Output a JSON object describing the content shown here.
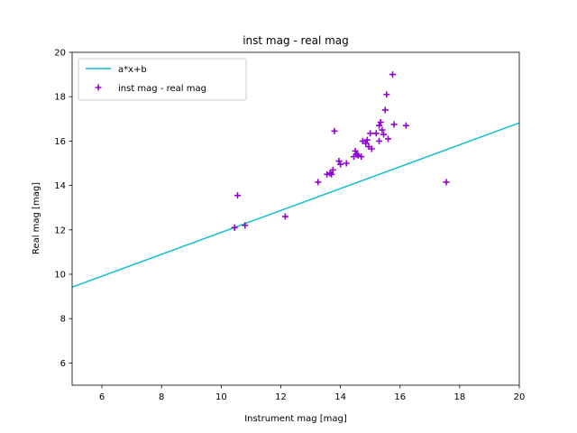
{
  "chart_data": {
    "type": "scatter",
    "title": "inst mag - real mag",
    "xlabel": "Instrument mag [mag]",
    "ylabel": "Real mag [mag]",
    "xlim": [
      5,
      20
    ],
    "ylim": [
      5,
      20
    ],
    "xticks": [
      6,
      8,
      10,
      12,
      14,
      16,
      18,
      20
    ],
    "yticks": [
      6,
      8,
      10,
      12,
      14,
      16,
      18,
      20
    ],
    "grid": false,
    "legend_position": "top-left",
    "series": [
      {
        "name": "a*x+b",
        "kind": "line",
        "color": "#17becf",
        "x": [
          5,
          20
        ],
        "y": [
          9.42,
          16.82
        ]
      },
      {
        "name": "inst mag - real mag",
        "kind": "scatter",
        "marker": "plus",
        "color": "#9400d3",
        "x": [
          10.45,
          10.55,
          10.8,
          12.15,
          13.25,
          13.55,
          13.65,
          13.7,
          13.75,
          13.8,
          13.95,
          14.0,
          14.2,
          14.45,
          14.5,
          14.55,
          14.6,
          14.7,
          14.75,
          14.85,
          14.9,
          14.95,
          15.0,
          15.05,
          15.2,
          15.3,
          15.3,
          15.35,
          15.4,
          15.45,
          15.5,
          15.55,
          15.6,
          15.75,
          15.8,
          16.2,
          17.55
        ],
        "y": [
          12.1,
          13.55,
          12.2,
          12.6,
          14.15,
          14.5,
          14.55,
          14.5,
          14.7,
          16.45,
          15.1,
          14.95,
          15.0,
          15.3,
          15.55,
          15.4,
          15.35,
          15.3,
          16.0,
          15.9,
          16.05,
          15.75,
          16.35,
          15.65,
          16.35,
          16.7,
          16.0,
          16.85,
          16.5,
          16.3,
          17.4,
          18.1,
          16.1,
          19.0,
          16.75,
          16.7,
          14.15
        ]
      }
    ]
  }
}
